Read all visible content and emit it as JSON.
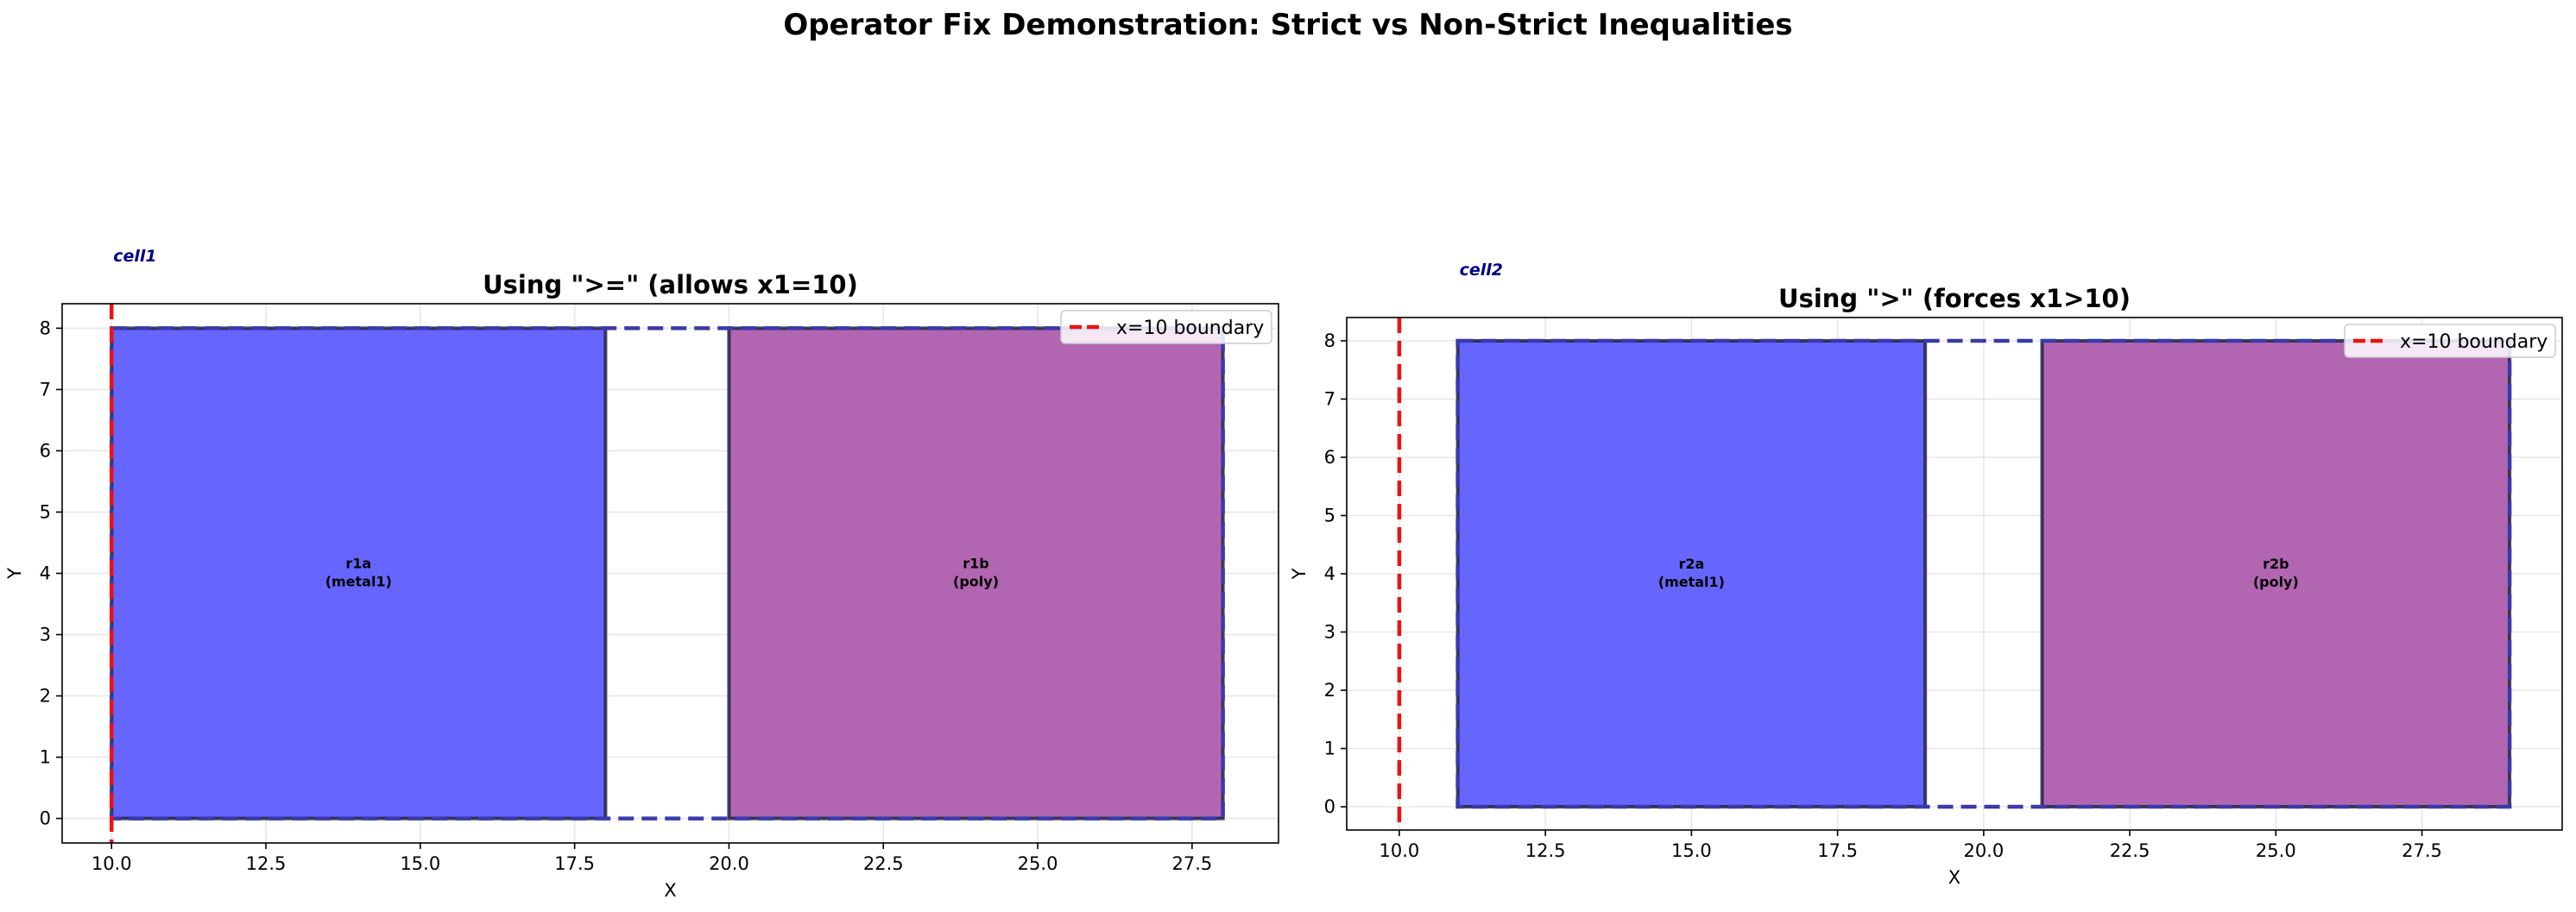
{
  "figure": {
    "suptitle": "Operator Fix Demonstration: Strict vs Non-Strict Inequalities"
  },
  "chart_data": [
    {
      "type": "rectangles",
      "title": "Using \">=\" (allows x1=10)",
      "xlabel": "X",
      "ylabel": "Y",
      "xlim": [
        9.2,
        28.9
      ],
      "ylim": [
        -0.4,
        8.4
      ],
      "xticks": [
        "10.0",
        "12.5",
        "15.0",
        "17.5",
        "20.0",
        "22.5",
        "25.0",
        "27.5"
      ],
      "xtick_values": [
        10.0,
        12.5,
        15.0,
        17.5,
        20.0,
        22.5,
        25.0,
        27.5
      ],
      "yticks": [
        "0",
        "1",
        "2",
        "3",
        "4",
        "5",
        "6",
        "7",
        "8"
      ],
      "ytick_values": [
        0,
        1,
        2,
        3,
        4,
        5,
        6,
        7,
        8
      ],
      "grid": true,
      "rects": [
        {
          "name": "r1a",
          "layer": "(metal1)",
          "x1": 10,
          "x2": 18,
          "y1": 0,
          "y2": 8,
          "color": "#6666ff"
        },
        {
          "name": "r1b",
          "layer": "(poly)",
          "x1": 20,
          "x2": 28,
          "y1": 0,
          "y2": 8,
          "color": "#b266b2"
        }
      ],
      "cell": {
        "label": "cell1",
        "x1": 10,
        "x2": 28,
        "y1": 0,
        "y2": 8,
        "color": "#3a3aaa"
      },
      "boundary": {
        "x": 10,
        "color": "#ee1111"
      },
      "legend": {
        "entries": [
          "x=10 boundary"
        ],
        "placement": "top-right"
      }
    },
    {
      "type": "rectangles",
      "title": "Using \">\" (forces x1>10)",
      "xlabel": "X",
      "ylabel": "Y",
      "xlim": [
        9.1,
        29.9
      ],
      "ylim": [
        -0.4,
        8.4
      ],
      "xticks": [
        "10.0",
        "12.5",
        "15.0",
        "17.5",
        "20.0",
        "22.5",
        "25.0",
        "27.5"
      ],
      "xtick_values": [
        10.0,
        12.5,
        15.0,
        17.5,
        20.0,
        22.5,
        25.0,
        27.5
      ],
      "yticks": [
        "0",
        "1",
        "2",
        "3",
        "4",
        "5",
        "6",
        "7",
        "8"
      ],
      "ytick_values": [
        0,
        1,
        2,
        3,
        4,
        5,
        6,
        7,
        8
      ],
      "grid": true,
      "rects": [
        {
          "name": "r2a",
          "layer": "(metal1)",
          "x1": 11,
          "x2": 19,
          "y1": 0,
          "y2": 8,
          "color": "#6666ff"
        },
        {
          "name": "r2b",
          "layer": "(poly)",
          "x1": 21,
          "x2": 29,
          "y1": 0,
          "y2": 8,
          "color": "#b266b2"
        }
      ],
      "cell": {
        "label": "cell2",
        "x1": 11,
        "x2": 29,
        "y1": 0,
        "y2": 8,
        "color": "#3a3aaa"
      },
      "boundary": {
        "x": 10,
        "color": "#ee1111"
      },
      "legend": {
        "entries": [
          "x=10 boundary"
        ],
        "placement": "top-right"
      }
    }
  ]
}
